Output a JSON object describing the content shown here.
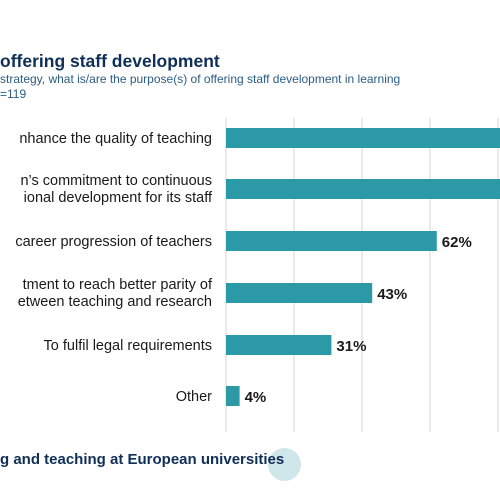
{
  "header": {
    "title": "offering staff development",
    "subtitle_line1": " strategy, what is/are the purpose(s) of offering staff development in learning",
    "subtitle_line2": "=119"
  },
  "footer": {
    "text": "g and teaching at European universities"
  },
  "colors": {
    "bar": "#2b9aa6",
    "title": "#0f2f57",
    "subtitle": "#2b5d86",
    "label": "#1a1a1a",
    "grid": "#d4d4d4",
    "footer_dot": "#cfe6ea"
  },
  "chart_data": {
    "type": "bar",
    "orientation": "horizontal",
    "categories": [
      [
        "nhance the quality of teaching"
      ],
      [
        "n’s commitment to continuous",
        "ional development for its staff"
      ],
      [
        "career progression of teachers"
      ],
      [
        "tment to reach better parity of",
        "etween teaching and research"
      ],
      [
        "To fulfil legal requirements"
      ],
      [
        "Other"
      ]
    ],
    "values": [
      null,
      null,
      62,
      43,
      31,
      4
    ],
    "data_labels": [
      "",
      "",
      "62%",
      "43%",
      "31%",
      "4%"
    ],
    "title": "",
    "xlabel": "",
    "ylabel": "",
    "xlim": [
      0,
      100
    ],
    "grid": true
  }
}
